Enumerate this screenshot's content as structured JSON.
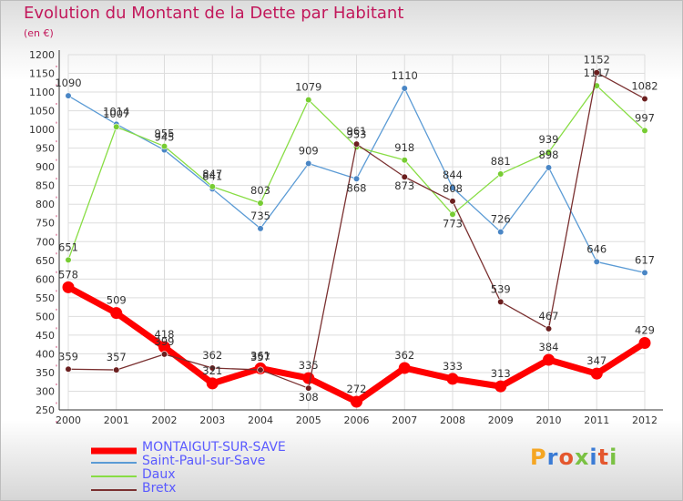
{
  "title": "Evolution du Montant de la Dette par Habitant",
  "subtitle": "(en €)",
  "logo_text": "Proxiti",
  "colors": {
    "title": "#c2185b",
    "axis": "#333333",
    "grid": "#dddddd",
    "legend_text": "#5a5aff"
  },
  "chart_data": {
    "type": "line",
    "x": [
      2000,
      2001,
      2002,
      2003,
      2004,
      2005,
      2006,
      2007,
      2008,
      2009,
      2010,
      2011,
      2012
    ],
    "ylim": [
      250,
      1200
    ],
    "yticks": [
      250,
      300,
      350,
      400,
      450,
      500,
      550,
      600,
      650,
      700,
      750,
      800,
      850,
      900,
      950,
      1000,
      1050,
      1100,
      1150,
      1200
    ],
    "grid": true,
    "legend_position": "bottom-left",
    "series": [
      {
        "name": "MONTAIGUT-SUR-SAVE",
        "color": "#ff0000",
        "marker": "#ff0000",
        "width": 7,
        "values": [
          578,
          509,
          418,
          321,
          361,
          335,
          272,
          362,
          333,
          313,
          384,
          347,
          429
        ],
        "labels": [
          "578",
          "509",
          "418",
          "321",
          "361",
          "335",
          "272",
          "362",
          "333",
          "313",
          "384",
          "347",
          "429"
        ]
      },
      {
        "name": "Saint-Paul-sur-Save",
        "color": "#5b9bd5",
        "marker": "#4a86c5",
        "width": 1.3,
        "values": [
          1090,
          1014,
          945,
          841,
          735,
          909,
          868,
          1110,
          844,
          726,
          898,
          646,
          617
        ],
        "labels": [
          "1090",
          "1014",
          "945",
          "841",
          "735",
          "909",
          "868",
          "1110",
          "844",
          "726",
          "898",
          "646",
          "617"
        ]
      },
      {
        "name": "Daux",
        "color": "#88dd44",
        "marker": "#77cc33",
        "width": 1.3,
        "values": [
          651,
          1007,
          955,
          847,
          803,
          1079,
          953,
          918,
          773,
          881,
          939,
          1117,
          997
        ],
        "labels": [
          "651",
          "1007",
          "955",
          "847",
          "803",
          "1079",
          "953",
          "918",
          "773",
          "881",
          "939",
          "1117",
          "997"
        ]
      },
      {
        "name": "Bretx",
        "color": "#7a3030",
        "marker": "#6b1f1f",
        "width": 1.3,
        "values": [
          359,
          357,
          399,
          362,
          357,
          308,
          961,
          873,
          808,
          539,
          467,
          1152,
          1082
        ],
        "labels": [
          "359",
          "357",
          "399",
          "362",
          "357",
          "308",
          "961",
          "873",
          "808",
          "539",
          "467",
          "1152",
          "1082"
        ]
      }
    ]
  }
}
